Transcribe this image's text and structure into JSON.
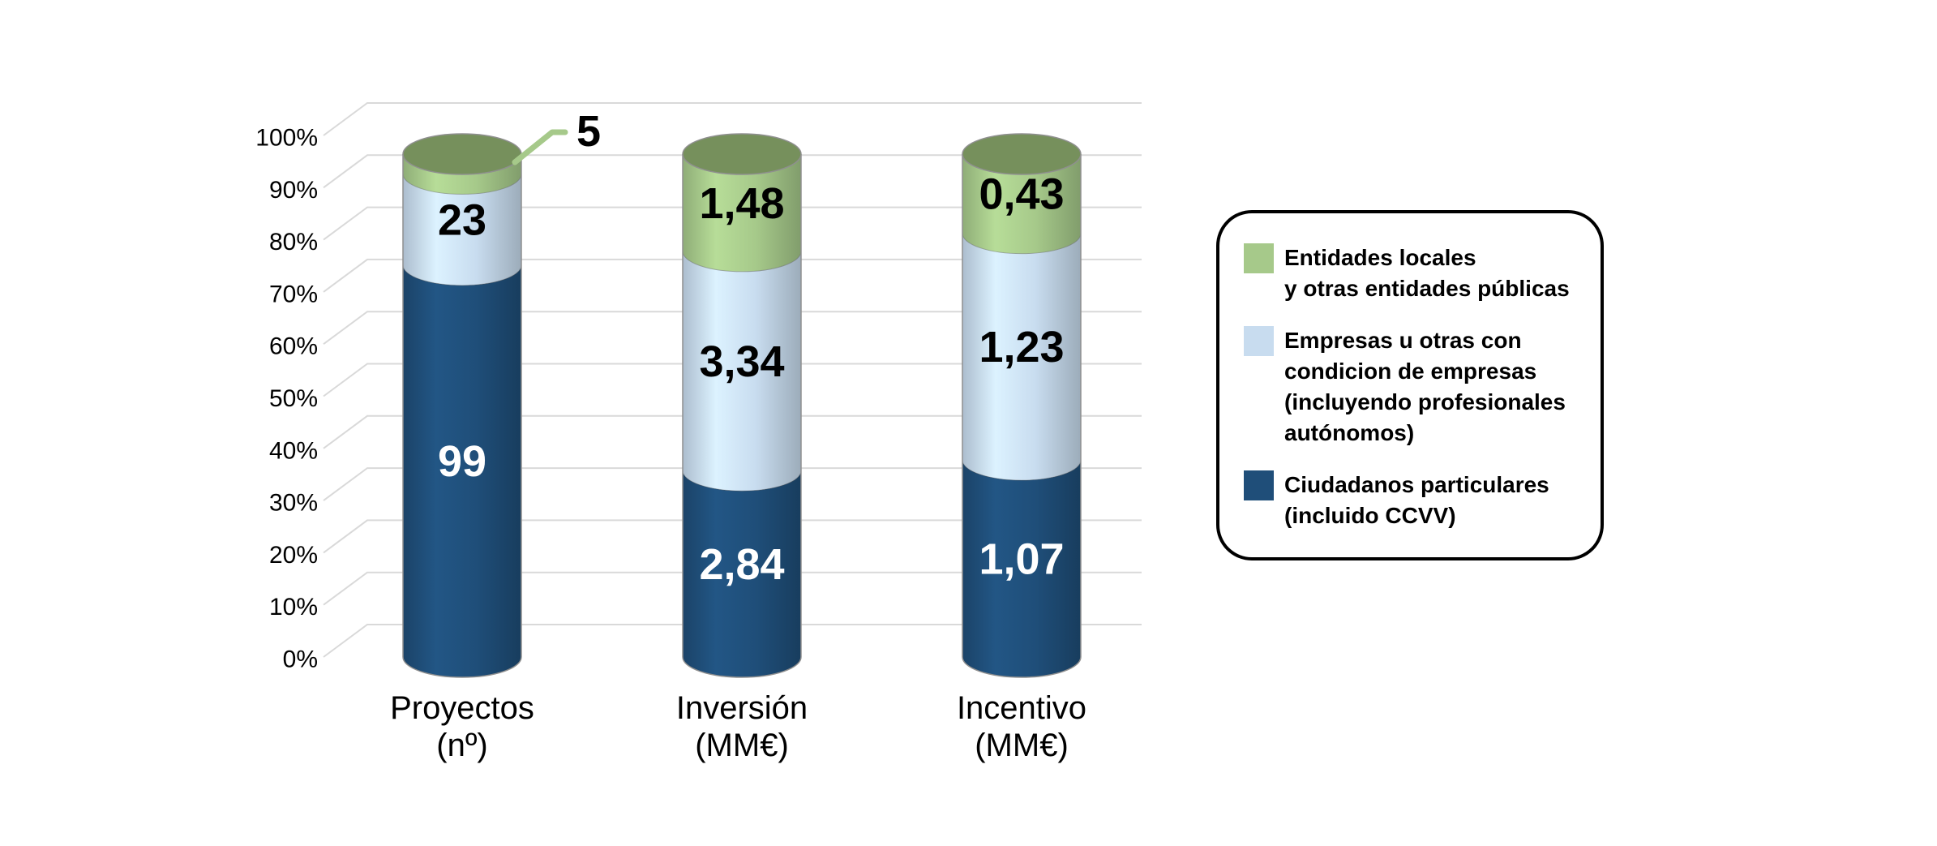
{
  "page": {
    "background": "#FFFFFF",
    "title": ""
  },
  "chart_data": {
    "type": "bar",
    "subtype": "3d-cylinder-100-percent-stacked",
    "title": "",
    "stacking": "percent",
    "grid": {
      "show": true,
      "color": "#D9D9D9"
    },
    "legend_position": "right",
    "y_axis": {
      "min": 0,
      "max": 100,
      "ticks": [
        "0%",
        "10%",
        "20%",
        "30%",
        "40%",
        "50%",
        "60%",
        "70%",
        "80%",
        "90%",
        "100%"
      ]
    },
    "categories": [
      {
        "lines": [
          "Proyectos",
          "(nº)"
        ]
      },
      {
        "lines": [
          "Inversión",
          "(MM€)"
        ]
      },
      {
        "lines": [
          "Incentivo",
          "(MM€)"
        ]
      }
    ],
    "series": [
      {
        "name": "Ciudadanos particulares (incluido CCVV)",
        "color": "#1F4E79",
        "label_color": "#FFFFFF",
        "values": [
          99,
          2.84,
          1.07
        ],
        "value_labels": [
          "99",
          "2,84",
          "1,07"
        ]
      },
      {
        "name": "Empresas u otras con condicion de empresas (incluyendo profesionales autónomos)",
        "color": "#C8DCEF",
        "label_color": "#000000",
        "values": [
          23,
          3.34,
          1.23
        ],
        "value_labels": [
          "23",
          "3,34",
          "1,23"
        ]
      },
      {
        "name": "Entidades locales y otras entidades públicas",
        "color": "#A6C98A",
        "top_color": "#76905C",
        "label_color": "#000000",
        "values": [
          5,
          1.48,
          0.43
        ],
        "value_labels": [
          "5",
          "1,48",
          "0,43"
        ]
      }
    ],
    "callout": {
      "category_index": 0,
      "series_index": 2,
      "text": "5",
      "color": "#A6C98A",
      "text_color": "#000000"
    }
  },
  "legend": {
    "border_color": "#000000",
    "items": [
      {
        "color": "#A6C98A",
        "lines": [
          "Entidades locales",
          "y otras entidades públicas"
        ]
      },
      {
        "color": "#C8DCEF",
        "lines": [
          "Empresas u otras con",
          "condicion de empresas",
          "(incluyendo profesionales",
          "autónomos)"
        ]
      },
      {
        "color": "#1F4E79",
        "lines": [
          "Ciudadanos particulares",
          "(incluido CCVV)"
        ]
      }
    ]
  }
}
